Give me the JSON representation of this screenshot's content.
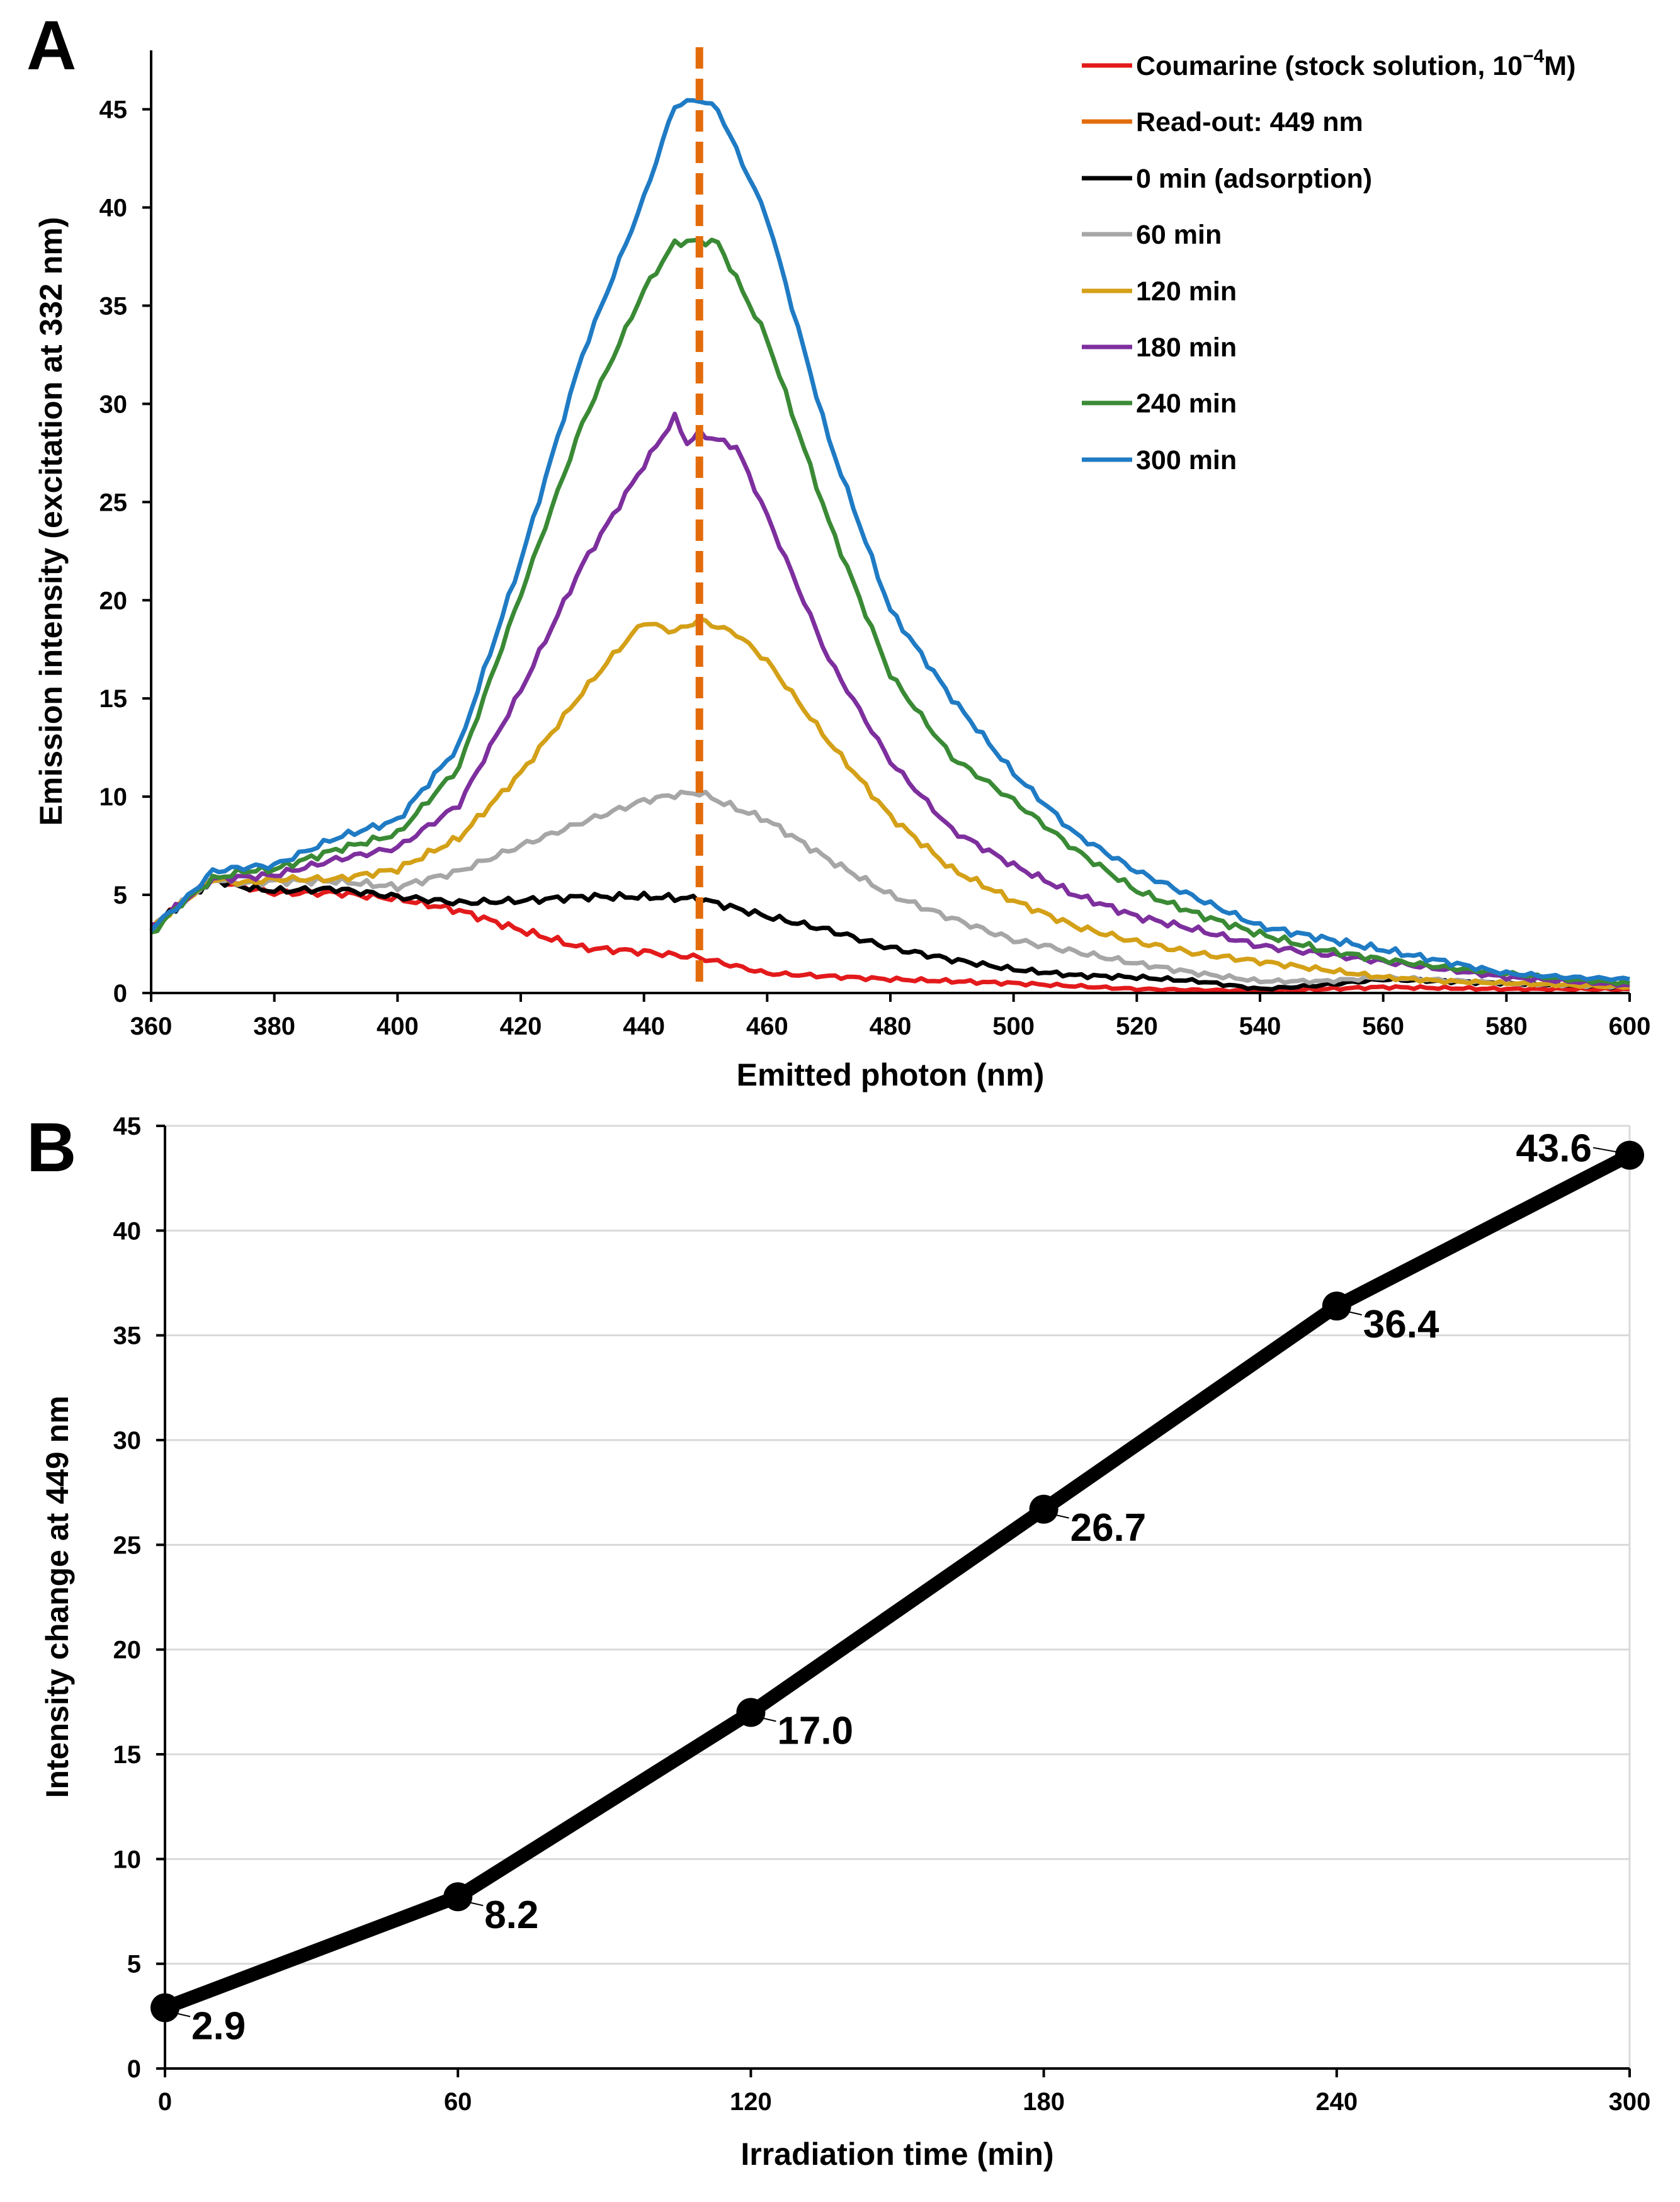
{
  "chart_data": [
    {
      "panel": "A",
      "type": "line",
      "xlabel": "Emitted photon (nm)",
      "ylabel": "Emission intensity (excitation at 332 nm)",
      "xlim": [
        360,
        600
      ],
      "ylim": [
        0,
        48
      ],
      "x_ticks": [
        360,
        380,
        400,
        420,
        440,
        460,
        480,
        500,
        520,
        540,
        560,
        580,
        600
      ],
      "y_ticks": [
        0,
        5,
        10,
        15,
        20,
        25,
        30,
        35,
        40,
        45
      ],
      "readout": {
        "label": "Read-out: 449 nm",
        "x": 449,
        "color": "#E36C0A"
      },
      "legend_position": "top-right",
      "legend": [
        {
          "label_main": "Coumarine (stock solution, 10",
          "label_sup": "−4",
          "label_end": "M)",
          "color": "#E31A1C"
        },
        {
          "label": "Read-out: 449 nm",
          "color": "#E36C0A"
        },
        {
          "label": "0 min (adsorption)",
          "color": "#000000"
        },
        {
          "label": "60 min",
          "color": "#A6A6A6"
        },
        {
          "label": "120 min",
          "color": "#D4A017"
        },
        {
          "label": "180 min",
          "color": "#7E2F9E"
        },
        {
          "label": "240 min",
          "color": "#3A8A35"
        },
        {
          "label": "300 min",
          "color": "#1F7BC4"
        }
      ],
      "series": [
        {
          "name": "Coumarine (stock solution, 10−4M)",
          "color": "#E31A1C",
          "x": [
            360,
            365,
            370,
            375,
            380,
            390,
            400,
            410,
            420,
            430,
            440,
            449,
            460,
            480,
            500,
            520,
            540,
            560,
            580,
            600
          ],
          "y": [
            3.3,
            4.6,
            5.8,
            5.4,
            5.1,
            5.1,
            4.8,
            4.2,
            3.2,
            2.3,
            2.1,
            1.8,
            1.0,
            0.7,
            0.5,
            0.2,
            0.1,
            0.3,
            0.2,
            0.2
          ]
        },
        {
          "name": "0 min (adsorption)",
          "color": "#000000",
          "x": [
            360,
            365,
            370,
            375,
            380,
            390,
            400,
            410,
            420,
            430,
            440,
            449,
            460,
            470,
            480,
            490,
            500,
            510,
            520,
            530,
            540,
            550,
            560,
            580,
            600
          ],
          "y": [
            3.3,
            4.6,
            5.8,
            5.4,
            5.2,
            5.3,
            4.9,
            4.6,
            4.7,
            4.9,
            4.9,
            4.8,
            3.9,
            3.2,
            2.3,
            1.7,
            1.2,
            0.9,
            0.8,
            0.6,
            0.2,
            0.4,
            0.7,
            0.5,
            0.3
          ]
        },
        {
          "name": "60 min",
          "color": "#A6A6A6",
          "x": [
            360,
            365,
            370,
            375,
            380,
            390,
            400,
            410,
            420,
            430,
            440,
            445,
            449,
            455,
            460,
            470,
            480,
            490,
            500,
            510,
            520,
            530,
            540,
            550,
            560,
            580,
            600
          ],
          "y": [
            3.3,
            4.6,
            5.8,
            5.6,
            5.7,
            5.7,
            5.4,
            6.2,
            7.5,
            8.7,
            9.8,
            10.1,
            10.2,
            9.4,
            8.8,
            6.8,
            5.0,
            3.8,
            2.7,
            2.1,
            1.5,
            1.0,
            0.6,
            0.6,
            0.8,
            0.5,
            0.3
          ]
        },
        {
          "name": "120 min",
          "color": "#D4A017",
          "x": [
            360,
            365,
            370,
            375,
            380,
            390,
            400,
            410,
            420,
            430,
            435,
            440,
            445,
            449,
            455,
            460,
            470,
            480,
            490,
            500,
            510,
            520,
            530,
            540,
            550,
            560,
            570,
            580,
            590,
            600
          ],
          "y": [
            3.3,
            4.6,
            5.8,
            5.6,
            5.8,
            5.8,
            6.3,
            7.9,
            11.2,
            15.3,
            17.2,
            18.9,
            18.4,
            19.0,
            18.3,
            16.9,
            12.8,
            9.0,
            6.3,
            4.7,
            3.4,
            2.6,
            2.0,
            1.6,
            1.2,
            0.8,
            0.6,
            0.5,
            0.4,
            0.3
          ]
        },
        {
          "name": "180 min",
          "color": "#7E2F9E",
          "x": [
            360,
            365,
            370,
            375,
            380,
            390,
            400,
            410,
            420,
            430,
            440,
            445,
            447,
            449,
            455,
            460,
            470,
            480,
            490,
            500,
            510,
            520,
            530,
            540,
            550,
            560,
            570,
            580,
            590,
            600
          ],
          "y": [
            3.3,
            4.6,
            5.8,
            5.9,
            6.0,
            6.8,
            7.4,
            9.6,
            15.4,
            21.8,
            26.9,
            29.3,
            28.0,
            28.5,
            27.8,
            24.3,
            17.0,
            11.8,
            8.3,
            6.5,
            5.0,
            3.9,
            3.2,
            2.4,
            2.0,
            1.6,
            1.2,
            0.8,
            0.6,
            0.4
          ]
        },
        {
          "name": "240 min",
          "color": "#3A8A35",
          "x": [
            360,
            365,
            370,
            375,
            380,
            390,
            400,
            410,
            420,
            430,
            440,
            445,
            449,
            452,
            460,
            470,
            480,
            490,
            500,
            510,
            520,
            530,
            540,
            550,
            560,
            570,
            580,
            590,
            600
          ],
          "y": [
            3.0,
            4.6,
            5.8,
            6.2,
            6.3,
            7.3,
            8.1,
            11.5,
            20.3,
            29.0,
            35.8,
            38.2,
            38.3,
            38.2,
            33.3,
            24.0,
            16.2,
            12.0,
            9.8,
            7.3,
            5.2,
            4.0,
            3.0,
            2.2,
            1.7,
            1.3,
            1.0,
            0.7,
            0.5
          ]
        },
        {
          "name": "300 min",
          "color": "#1F7BC4",
          "x": [
            360,
            365,
            370,
            375,
            380,
            390,
            400,
            410,
            420,
            430,
            440,
            445,
            449,
            452,
            460,
            470,
            480,
            490,
            500,
            510,
            520,
            530,
            540,
            550,
            560,
            570,
            580,
            590,
            600
          ],
          "y": [
            3.3,
            4.6,
            6.2,
            6.4,
            6.5,
            7.9,
            8.8,
            12.6,
            22.0,
            32.5,
            40.5,
            45.2,
            45.5,
            45.0,
            39.5,
            28.2,
            19.5,
            15.0,
            11.2,
            8.1,
            6.2,
            4.8,
            3.4,
            2.8,
            2.2,
            1.6,
            1.0,
            0.8,
            0.7
          ]
        }
      ]
    },
    {
      "panel": "B",
      "type": "line",
      "xlabel": "Irradiation time (min)",
      "ylabel": "Intensity change at 449 nm",
      "xlim": [
        0,
        300
      ],
      "ylim": [
        0,
        45
      ],
      "x_ticks": [
        0,
        60,
        120,
        180,
        240,
        300
      ],
      "y_ticks": [
        0,
        5,
        10,
        15,
        20,
        25,
        30,
        35,
        40,
        45
      ],
      "grid": true,
      "series": [
        {
          "name": "Intensity change",
          "color": "#000000",
          "x": [
            0,
            60,
            120,
            180,
            240,
            300
          ],
          "y": [
            2.9,
            8.2,
            17.0,
            26.7,
            36.4,
            43.6
          ],
          "labels": [
            "2.9",
            "8.2",
            "17.0",
            "26.7",
            "36.4",
            "43.6"
          ]
        }
      ]
    }
  ]
}
